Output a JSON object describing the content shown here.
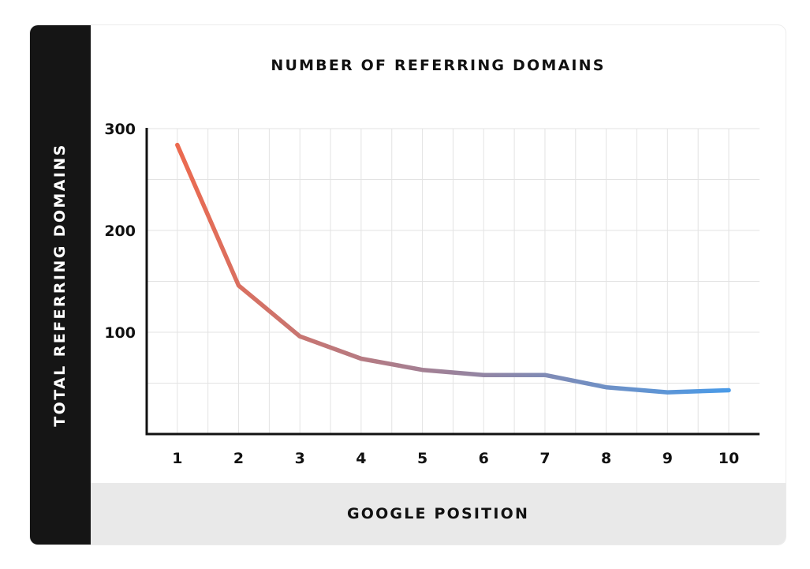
{
  "chart_data": {
    "type": "line",
    "title": "NUMBER OF REFERRING DOMAINS",
    "xlabel": "GOOGLE POSITION",
    "ylabel": "TOTAL REFERRING DOMAINS",
    "categories": [
      "1",
      "2",
      "3",
      "4",
      "5",
      "6",
      "7",
      "8",
      "9",
      "10"
    ],
    "x": [
      1,
      2,
      3,
      4,
      5,
      6,
      7,
      8,
      9,
      10
    ],
    "series": [
      {
        "values": [
          284,
          146,
          96,
          74,
          63,
          58,
          58,
          46,
          41,
          43
        ]
      }
    ],
    "xlim": [
      0.5,
      10
    ],
    "ylim": [
      0,
      300
    ],
    "yticks": [
      100,
      200,
      300
    ],
    "grid": true,
    "line_gradient": [
      "#ec6a4f",
      "#4a9be8"
    ],
    "colors": {
      "y_band": "#151515",
      "x_band": "#e9e9e9",
      "grid": "#e3e3e3",
      "axis": "#111111"
    }
  }
}
